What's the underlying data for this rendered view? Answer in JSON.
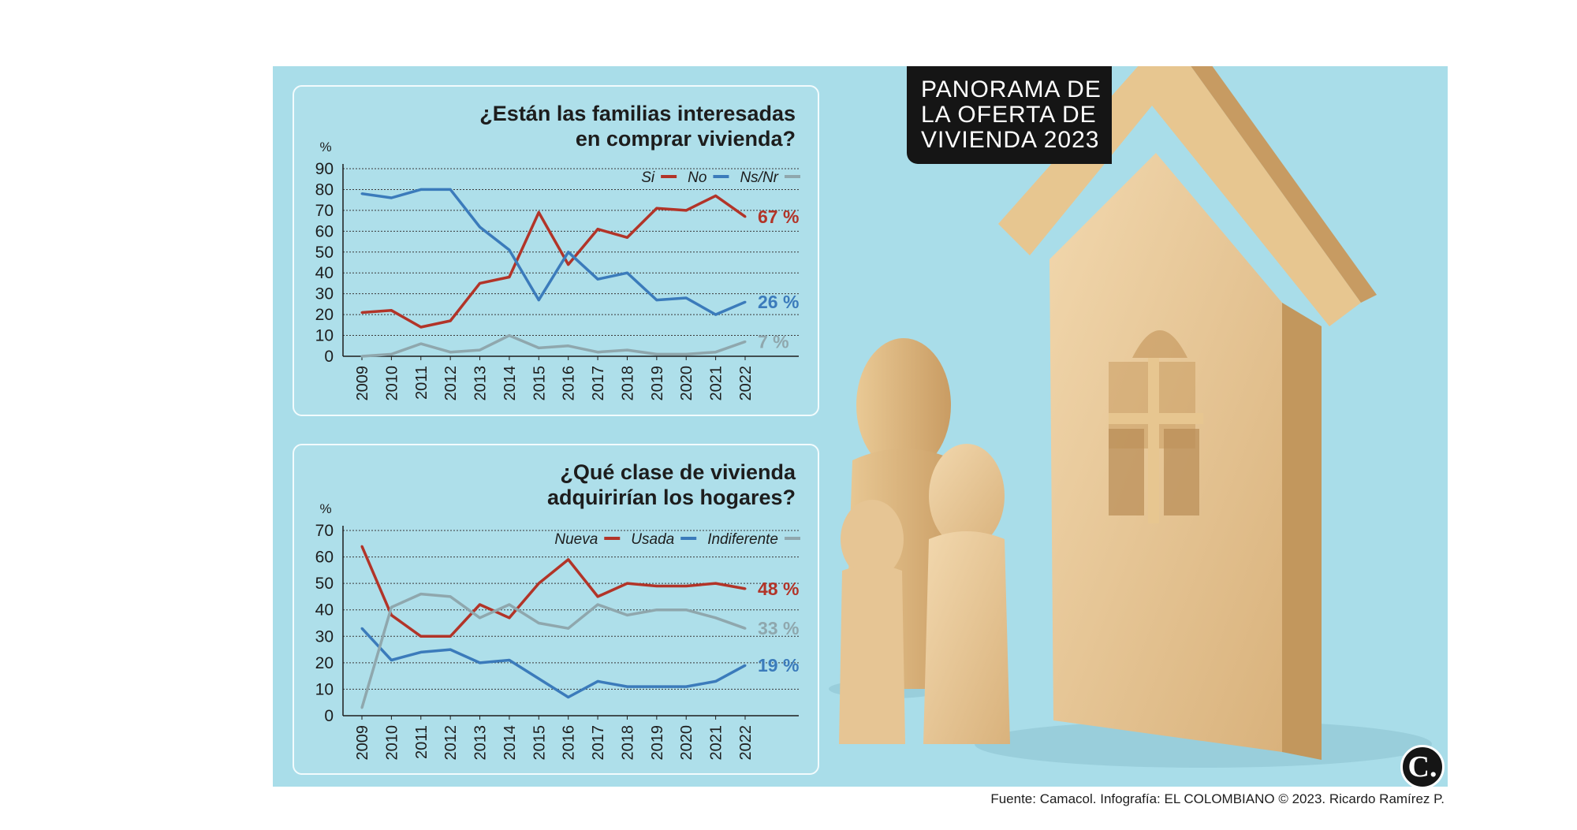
{
  "badge": {
    "text": "PANORAMA DE\nLA OFERTA DE\nVIVIENDA 2023"
  },
  "logo": {
    "text": "C."
  },
  "source": {
    "text": "Fuente: Camacol. Infografía: EL COLOMBIANO © 2023. Ricardo Ramírez P."
  },
  "chart_data": [
    {
      "type": "line",
      "title": "¿Están las familias interesadas\nen comprar vivienda?",
      "ylabel": "%",
      "ylim": [
        0,
        90
      ],
      "yticks": [
        0,
        10,
        20,
        30,
        40,
        50,
        60,
        70,
        80,
        90
      ],
      "grid": "horizontal dotted",
      "legend": "top-right",
      "categories": [
        "2009",
        "2010",
        "2011",
        "2012",
        "2013",
        "2014",
        "2015",
        "2016",
        "2017",
        "2018",
        "2019",
        "2020",
        "2021",
        "2022"
      ],
      "series": [
        {
          "name": "Si",
          "color": "#b23428",
          "end_label": "67 %",
          "values": [
            21,
            22,
            14,
            17,
            35,
            38,
            69,
            44,
            61,
            57,
            71,
            70,
            77,
            67
          ]
        },
        {
          "name": "No",
          "color": "#3b7bbb",
          "end_label": "26 %",
          "values": [
            78,
            76,
            80,
            80,
            62,
            51,
            27,
            50,
            37,
            40,
            27,
            28,
            20,
            26
          ]
        },
        {
          "name": "Ns/Nr",
          "color": "#8fa7ad",
          "end_label": "7 %",
          "values": [
            0,
            1,
            6,
            2,
            3,
            10,
            4,
            5,
            2,
            3,
            1,
            1,
            2,
            7
          ]
        }
      ]
    },
    {
      "type": "line",
      "title": "¿Qué clase de vivienda\nadquirirían los hogares?",
      "ylabel": "%",
      "ylim": [
        0,
        70
      ],
      "yticks": [
        0,
        10,
        20,
        30,
        40,
        50,
        60,
        70
      ],
      "grid": "horizontal dotted",
      "legend": "top-right",
      "categories": [
        "2009",
        "2010",
        "2011",
        "2012",
        "2013",
        "2014",
        "2015",
        "2016",
        "2017",
        "2018",
        "2019",
        "2020",
        "2021",
        "2022"
      ],
      "series": [
        {
          "name": "Nueva",
          "color": "#b23428",
          "end_label": "48 %",
          "values": [
            64,
            38,
            30,
            30,
            42,
            37,
            50,
            59,
            45,
            50,
            49,
            49,
            50,
            48
          ]
        },
        {
          "name": "Usada",
          "color": "#3b7bbb",
          "end_label": "19 %",
          "values": [
            33,
            21,
            24,
            25,
            20,
            21,
            14,
            7,
            13,
            11,
            11,
            11,
            13,
            19
          ]
        },
        {
          "name": "Indiferente",
          "color": "#8fa7ad",
          "end_label": "33 %",
          "values": [
            3,
            41,
            46,
            45,
            37,
            42,
            35,
            33,
            42,
            38,
            40,
            40,
            37,
            33
          ]
        }
      ]
    }
  ]
}
